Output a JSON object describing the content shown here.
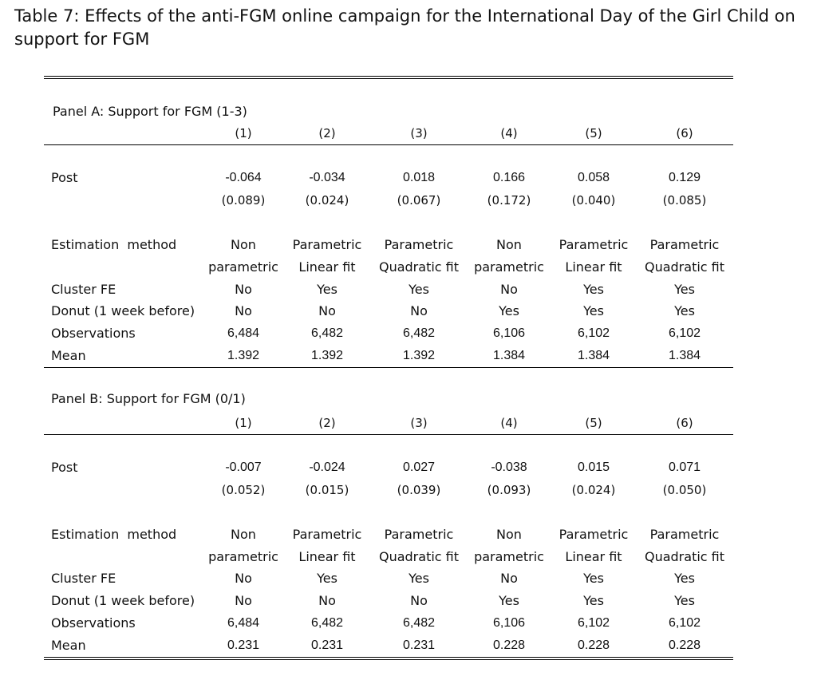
{
  "title": "Table 7: Effects of the anti-FGM online campaign for the International Day of the Girl Child on support for FGM",
  "panels": [
    {
      "label": "Panel A: Support for FGM (1-3)",
      "columns": [
        "(1)",
        "(2)",
        "(3)",
        "(4)",
        "(5)",
        "(6)"
      ],
      "post": {
        "label": "Post",
        "coef": [
          "-0.064",
          "-0.034",
          "0.018",
          "0.166",
          "0.058",
          "0.129"
        ],
        "se": [
          "(0.089)",
          "(0.024)",
          "(0.067)",
          "(0.172)",
          "(0.040)",
          "(0.085)"
        ]
      },
      "estimation": {
        "label": "Estimation  method",
        "line1": [
          "Non",
          "Parametric",
          "Parametric",
          "Non",
          "Parametric",
          "Parametric"
        ],
        "line2": [
          "parametric",
          "Linear fit",
          "Quadratic fit",
          "parametric",
          "Linear fit",
          "Quadratic fit"
        ]
      },
      "cluster_fe": {
        "label": "Cluster FE",
        "values": [
          "No",
          "Yes",
          "Yes",
          "No",
          "Yes",
          "Yes"
        ]
      },
      "donut": {
        "label": "Donut (1 week before)",
        "values": [
          "No",
          "No",
          "No",
          "Yes",
          "Yes",
          "Yes"
        ]
      },
      "observations": {
        "label": "Observations",
        "values": [
          "6,484",
          "6,482",
          "6,482",
          "6,106",
          "6,102",
          "6,102"
        ]
      },
      "mean": {
        "label": "Mean",
        "values": [
          "1.392",
          "1.392",
          "1.392",
          "1.384",
          "1.384",
          "1.384"
        ]
      }
    },
    {
      "label": "Panel B: Support for FGM (0/1)",
      "columns": [
        "(1)",
        "(2)",
        "(3)",
        "(4)",
        "(5)",
        "(6)"
      ],
      "post": {
        "label": "Post",
        "coef": [
          "-0.007",
          "-0.024",
          "0.027",
          "-0.038",
          "0.015",
          "0.071"
        ],
        "se": [
          "(0.052)",
          "(0.015)",
          "(0.039)",
          "(0.093)",
          "(0.024)",
          "(0.050)"
        ]
      },
      "estimation": {
        "label": "Estimation  method",
        "line1": [
          "Non",
          "Parametric",
          "Parametric",
          "Non",
          "Parametric",
          "Parametric"
        ],
        "line2": [
          "parametric",
          "Linear fit",
          "Quadratic fit",
          "parametric",
          "Linear fit",
          "Quadratic fit"
        ]
      },
      "cluster_fe": {
        "label": "Cluster FE",
        "values": [
          "No",
          "Yes",
          "Yes",
          "No",
          "Yes",
          "Yes"
        ]
      },
      "donut": {
        "label": "Donut (1 week before)",
        "values": [
          "No",
          "No",
          "No",
          "Yes",
          "Yes",
          "Yes"
        ]
      },
      "observations": {
        "label": "Observations",
        "values": [
          "6,484",
          "6,482",
          "6,482",
          "6,106",
          "6,102",
          "6,102"
        ]
      },
      "mean": {
        "label": "Mean",
        "values": [
          "0.231",
          "0.231",
          "0.231",
          "0.228",
          "0.228",
          "0.228"
        ]
      }
    }
  ]
}
